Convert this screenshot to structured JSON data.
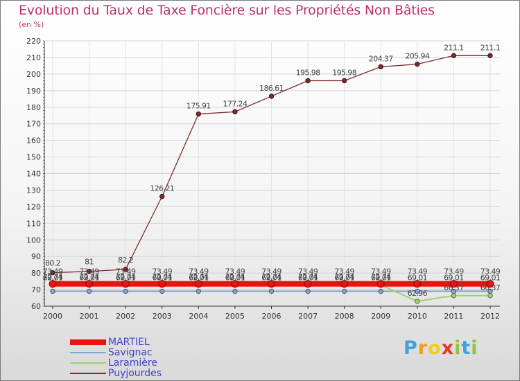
{
  "title": "Evolution du Taux de Taxe Foncière sur les Propriétés Non Bâties",
  "units_label": "(en %)",
  "logo": {
    "letters": [
      "P",
      "r",
      "o",
      "x",
      "i",
      "t",
      "i"
    ],
    "colors": [
      "#3fa3d9",
      "#f29a1f",
      "#f2cd1f",
      "#e8362c",
      "#8cc63f",
      "#3fa3d9",
      "#8cc63f"
    ]
  },
  "chart_data": {
    "type": "line",
    "title": "Evolution du Taux de Taxe Foncière sur les Propriétés Non Bâties",
    "ylabel": "(en %)",
    "xlabel": "",
    "x": [
      "2000",
      "2001",
      "2002",
      "2003",
      "2004",
      "2005",
      "2006",
      "2007",
      "2008",
      "2009",
      "2010",
      "2011",
      "2012"
    ],
    "ylim": [
      60,
      220
    ],
    "yticks": [
      "60",
      "70",
      "80",
      "90",
      "100",
      "110",
      "120",
      "130",
      "140",
      "150",
      "160",
      "170",
      "180",
      "190",
      "200",
      "210",
      "220"
    ],
    "grid": true,
    "series": [
      {
        "name": "MARTIEL",
        "color": "#e8150f",
        "values": [
          73.49,
          73.49,
          73.49,
          73.49,
          73.49,
          73.49,
          73.49,
          73.49,
          73.49,
          73.49,
          73.49,
          73.49,
          73.49
        ],
        "labels": [
          "73.49",
          "73.49",
          "73.49",
          "73.49",
          "73.49",
          "73.49",
          "73.49",
          "73.49",
          "73.49",
          "73.49",
          "73.49",
          "73.49",
          "73.49"
        ]
      },
      {
        "name": "Savignac",
        "color": "#7ea6cc",
        "values": [
          69.01,
          69.01,
          69.01,
          69.01,
          69.01,
          69.01,
          69.01,
          69.01,
          69.01,
          69.01,
          69.01,
          69.01,
          69.01
        ],
        "labels": [
          "69.01",
          "69.01",
          "69.01",
          "69.01",
          "69.01",
          "69.01",
          "69.01",
          "69.01",
          "69.01",
          "69.01",
          "69.01",
          "69.01",
          "69.01"
        ]
      },
      {
        "name": "Laramière",
        "color": "#9ed26a",
        "values": [
          72.74,
          72.74,
          72.74,
          72.74,
          72.74,
          72.74,
          72.74,
          72.74,
          72.74,
          72.74,
          62.96,
          66.37,
          66.37
        ],
        "labels": [
          "72.74",
          "72.74",
          "72.74",
          "72.74",
          "72.74",
          "72.74",
          "72.74",
          "72.74",
          "72.74",
          "72.74",
          "62.96",
          "66.37",
          "66.37"
        ]
      },
      {
        "name": "Puyjourdes",
        "color": "#7a2a2a",
        "values": [
          80.2,
          81,
          82.2,
          126.21,
          175.91,
          177.24,
          186.61,
          195.98,
          195.98,
          204.37,
          205.94,
          211.1,
          211.1
        ],
        "labels": [
          "80.2",
          "81",
          "82.2",
          "126.21",
          "175.91",
          "177.24",
          "186.61",
          "195.98",
          "195.98",
          "204.37",
          "205.94",
          "211.1",
          "211.1"
        ]
      }
    ]
  }
}
